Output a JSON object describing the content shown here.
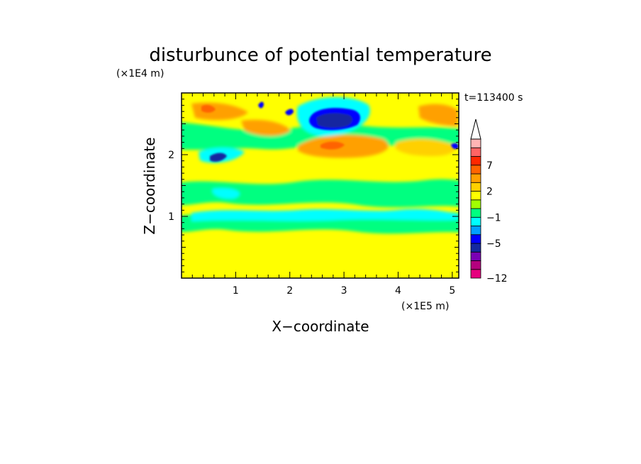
{
  "chart_data": {
    "type": "heatmap",
    "title": "disturbunce of potential temperature",
    "time_label": "t=113400 s",
    "xlabel": "X−coordinate",
    "ylabel": "Z−coordinate",
    "x_unit": "(×1E5 m)",
    "y_unit": "(×1E4 m)",
    "xlim": [
      0,
      5.12
    ],
    "ylim": [
      0,
      3.0
    ],
    "x_ticks": [
      "1",
      "2",
      "3",
      "4",
      "5"
    ],
    "y_ticks": [
      "1",
      "2"
    ],
    "colorbar": {
      "levels": [
        -12,
        -11,
        -9,
        -7,
        -5,
        -3,
        -2,
        -1,
        0,
        1,
        2,
        3,
        5,
        7,
        9,
        11
      ],
      "colors": [
        "#e6007e",
        "#b4007e",
        "#7a00b4",
        "#1428a0",
        "#0000ff",
        "#00a0ff",
        "#00ffff",
        "#00ff80",
        "#a0ff00",
        "#ffff00",
        "#ffd000",
        "#ffa000",
        "#ff6400",
        "#ff2800",
        "#ff6464",
        "#ffb4b4"
      ],
      "labels": [
        "7",
        "2",
        "−1",
        "−5",
        "−12"
      ],
      "extend": "max"
    },
    "grid": false,
    "legend": "colorbar-right"
  }
}
